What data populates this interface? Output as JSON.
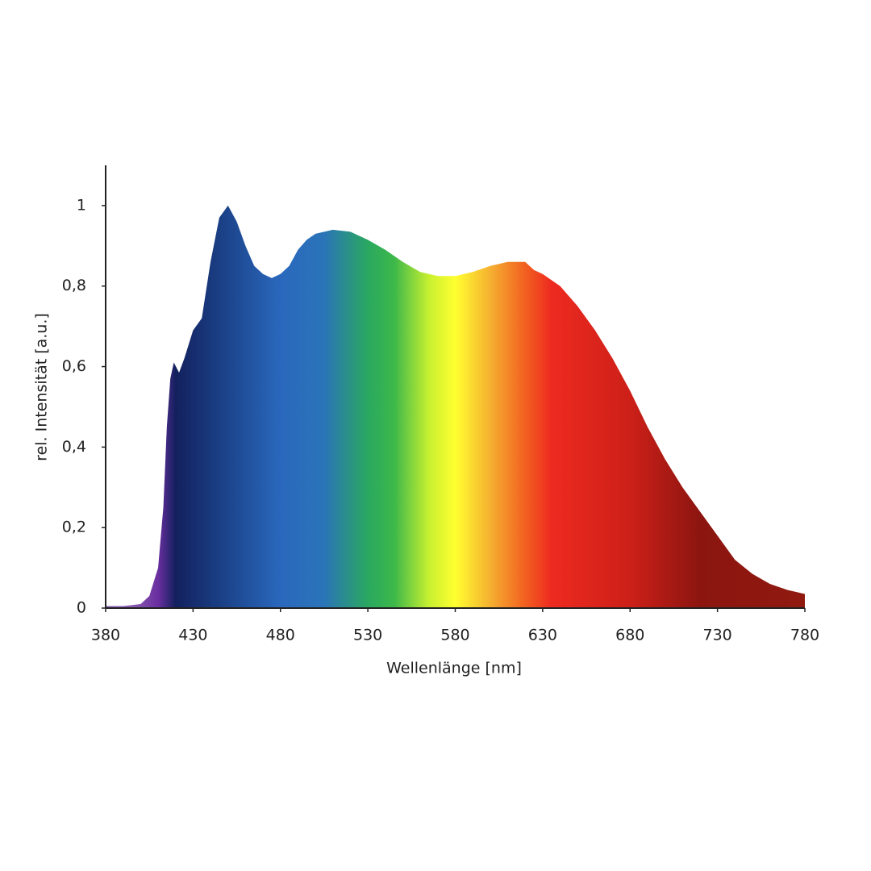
{
  "chart_data": {
    "type": "area",
    "x_label": "Wellenlänge [nm]",
    "y_label": "rel. Intensität [a.u.]",
    "x": [
      380,
      390,
      400,
      405,
      410,
      413,
      415,
      417,
      419,
      422,
      425,
      430,
      435,
      440,
      445,
      450,
      455,
      460,
      465,
      470,
      475,
      480,
      485,
      490,
      495,
      500,
      510,
      520,
      530,
      540,
      550,
      560,
      570,
      580,
      590,
      600,
      610,
      620,
      625,
      630,
      640,
      650,
      660,
      670,
      680,
      690,
      700,
      710,
      720,
      730,
      740,
      750,
      760,
      770,
      780
    ],
    "values": [
      0.005,
      0.005,
      0.01,
      0.03,
      0.1,
      0.25,
      0.45,
      0.57,
      0.61,
      0.585,
      0.62,
      0.69,
      0.72,
      0.86,
      0.97,
      1.0,
      0.96,
      0.9,
      0.85,
      0.83,
      0.82,
      0.83,
      0.85,
      0.89,
      0.915,
      0.93,
      0.94,
      0.935,
      0.915,
      0.89,
      0.86,
      0.835,
      0.825,
      0.825,
      0.835,
      0.85,
      0.86,
      0.86,
      0.84,
      0.83,
      0.8,
      0.75,
      0.69,
      0.62,
      0.54,
      0.45,
      0.37,
      0.3,
      0.24,
      0.18,
      0.12,
      0.085,
      0.06,
      0.045,
      0.035
    ],
    "xlim": [
      380,
      780
    ],
    "ylim": [
      0,
      1.1
    ],
    "xticks": [
      380,
      430,
      480,
      530,
      580,
      630,
      680,
      730,
      780
    ],
    "yticks": [
      0,
      {
        "value": 0.2,
        "label": "0,2"
      },
      {
        "value": 0.4,
        "label": "0,4"
      },
      {
        "value": 0.6,
        "label": "0,6"
      },
      {
        "value": 0.8,
        "label": "0,8"
      },
      1
    ],
    "grid": false,
    "color_stops": [
      {
        "x": 395,
        "color": "#8a5cb0"
      },
      {
        "x": 410,
        "color": "#6a2fa0"
      },
      {
        "x": 420,
        "color": "#13205e"
      },
      {
        "x": 445,
        "color": "#1a3f84"
      },
      {
        "x": 480,
        "color": "#2a68bd"
      },
      {
        "x": 505,
        "color": "#2a74b8"
      },
      {
        "x": 530,
        "color": "#2aa860"
      },
      {
        "x": 545,
        "color": "#3cb84a"
      },
      {
        "x": 565,
        "color": "#c8f030"
      },
      {
        "x": 580,
        "color": "#ffff30"
      },
      {
        "x": 600,
        "color": "#f5b030"
      },
      {
        "x": 620,
        "color": "#f26020"
      },
      {
        "x": 635,
        "color": "#ee2a20"
      },
      {
        "x": 680,
        "color": "#cc2018"
      },
      {
        "x": 720,
        "color": "#8c1510"
      },
      {
        "x": 780,
        "color": "#901a10"
      }
    ]
  }
}
